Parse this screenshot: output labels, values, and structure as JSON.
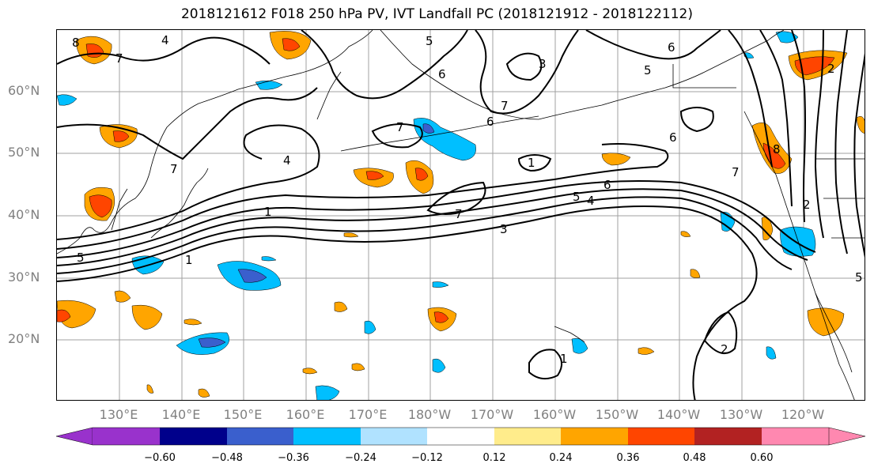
{
  "title": "2018121612 F018 250 hPa PV, IVT Landfall PC (2018121912 - 2018122112)",
  "lat_labels": [
    "60°N",
    "50°N",
    "40°N",
    "30°N",
    "20°N"
  ],
  "lon_labels": [
    "130°E",
    "140°E",
    "150°E",
    "160°E",
    "170°E",
    "180°W",
    "170°W",
    "160°W",
    "150°W",
    "140°W",
    "130°W",
    "120°W"
  ],
  "colorbar": {
    "ticks": [
      "−0.60",
      "−0.48",
      "−0.36",
      "−0.24",
      "−0.12",
      "0.12",
      "0.24",
      "0.36",
      "0.48",
      "0.60"
    ],
    "colors": [
      "#9932cc",
      "#00008b",
      "#3a5fcd",
      "#00bfff",
      "#b0e2ff",
      "#ffffff",
      "#ffec8b",
      "#ffa500",
      "#ff4500",
      "#b22222",
      "#ff88b0"
    ]
  },
  "contour_labels": [
    "5",
    "1",
    "4",
    "7",
    "1",
    "3",
    "5",
    "4",
    "6",
    "7",
    "6",
    "7",
    "6",
    "5",
    "5",
    "7",
    "8",
    "6",
    "2",
    "1",
    "2",
    "5",
    "4",
    "7",
    "8",
    "1",
    "2",
    "6",
    "7",
    "3"
  ]
}
